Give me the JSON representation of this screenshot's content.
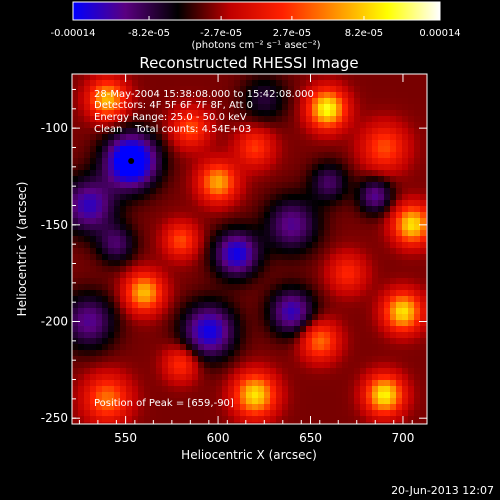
{
  "chart_data": {
    "type": "heatmap",
    "title": "Reconstructed RHESSI Image",
    "xlabel": "Heliocentric X (arcsec)",
    "ylabel": "Heliocentric Y (arcsec)",
    "xlim": [
      521,
      713
    ],
    "ylim": [
      -253,
      -72
    ],
    "x_ticks": [
      550,
      600,
      650,
      700
    ],
    "y_ticks": [
      -100,
      -150,
      -200,
      -250
    ],
    "colorbar": {
      "label": "(photons cm⁻² s⁻¹ asec⁻²)",
      "range": [
        -0.00014,
        0.00014
      ],
      "ticks": [
        "-0.00014",
        "-8.2e-05",
        "-2.7e-05",
        "2.7e-05",
        "8.2e-05",
        "0.00014"
      ],
      "tick_values": [
        -0.00014,
        -8.2e-05,
        -2.7e-05,
        2.7e-05,
        8.2e-05,
        0.00014
      ],
      "colors": [
        "#0000ff",
        "#5a0080",
        "#000000",
        "#c00000",
        "#ff2000",
        "#ff9000",
        "#ffff00",
        "#ffffff"
      ]
    },
    "annotations": [
      "28-May-2004 15:38:08.000 to 15:42:08.000",
      "Detectors: 4F 5F 6F 7F 8F, Att 0",
      "Energy Range: 25.0 - 50.0 keV",
      "Clean    Total counts: 4.54E+03"
    ],
    "peak_label": "Position of Peak = [659,-90]",
    "marker": {
      "x": 553,
      "y": -117
    },
    "blobs": [
      {
        "x": 553,
        "y": -117,
        "v": -1.0,
        "r": 14
      },
      {
        "x": 540,
        "y": -85,
        "v": 0.8,
        "r": 10
      },
      {
        "x": 530,
        "y": -140,
        "v": -0.6,
        "r": 14
      },
      {
        "x": 585,
        "y": -100,
        "v": 0.5,
        "r": 10
      },
      {
        "x": 600,
        "y": -128,
        "v": 0.75,
        "r": 10
      },
      {
        "x": 620,
        "y": -110,
        "v": 0.45,
        "r": 10
      },
      {
        "x": 659,
        "y": -90,
        "v": 1.0,
        "r": 10
      },
      {
        "x": 690,
        "y": -110,
        "v": 0.5,
        "r": 12
      },
      {
        "x": 705,
        "y": -150,
        "v": 0.9,
        "r": 10
      },
      {
        "x": 700,
        "y": -195,
        "v": 0.9,
        "r": 10
      },
      {
        "x": 690,
        "y": -238,
        "v": 0.95,
        "r": 10
      },
      {
        "x": 620,
        "y": -238,
        "v": 0.9,
        "r": 11
      },
      {
        "x": 540,
        "y": -240,
        "v": 0.6,
        "r": 12
      },
      {
        "x": 530,
        "y": -200,
        "v": -0.5,
        "r": 14
      },
      {
        "x": 560,
        "y": -185,
        "v": 0.8,
        "r": 10
      },
      {
        "x": 580,
        "y": -158,
        "v": 0.5,
        "r": 9
      },
      {
        "x": 610,
        "y": -165,
        "v": -0.7,
        "r": 12
      },
      {
        "x": 640,
        "y": -150,
        "v": -0.5,
        "r": 14
      },
      {
        "x": 655,
        "y": -210,
        "v": 0.6,
        "r": 10
      },
      {
        "x": 670,
        "y": -175,
        "v": 0.4,
        "r": 10
      },
      {
        "x": 640,
        "y": -195,
        "v": -0.6,
        "r": 12
      },
      {
        "x": 595,
        "y": -205,
        "v": -0.7,
        "r": 14
      },
      {
        "x": 660,
        "y": -128,
        "v": -0.4,
        "r": 10
      },
      {
        "x": 580,
        "y": -222,
        "v": 0.45,
        "r": 9
      },
      {
        "x": 545,
        "y": -160,
        "v": -0.4,
        "r": 10
      },
      {
        "x": 685,
        "y": -135,
        "v": -0.5,
        "r": 9
      },
      {
        "x": 625,
        "y": -85,
        "v": -0.3,
        "r": 12
      }
    ]
  },
  "footer_timestamp": "20-Jun-2013 12:07"
}
